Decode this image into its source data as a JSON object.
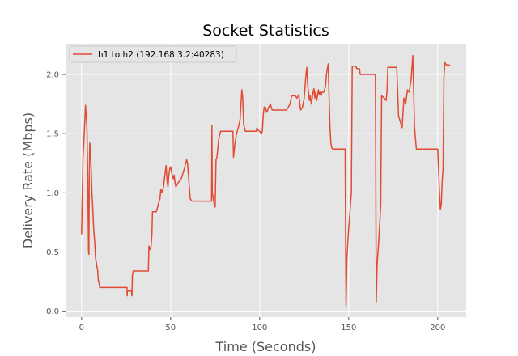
{
  "chart_data": {
    "type": "line",
    "title": "Socket Statistics",
    "xlabel": "Time (Seconds)",
    "ylabel": "Delivery Rate (Mbps)",
    "xlim": [
      -9,
      216
    ],
    "ylim": [
      -0.05,
      2.26
    ],
    "x_ticks": [
      0,
      50,
      100,
      150,
      200
    ],
    "y_ticks": [
      0.0,
      0.5,
      1.0,
      1.5,
      2.0
    ],
    "y_tick_format": 1,
    "grid": true,
    "legend": "top-left",
    "series": [
      {
        "name": "h1 to h2 (192.168.3.2:40283)",
        "color": "#e24a33",
        "points": [
          [
            0,
            0.65
          ],
          [
            0.4,
            1.0
          ],
          [
            0.8,
            1.3
          ],
          [
            1.2,
            1.4
          ],
          [
            1.8,
            1.6
          ],
          [
            2.2,
            1.74
          ],
          [
            2.6,
            1.65
          ],
          [
            3.0,
            1.55
          ],
          [
            3.4,
            1.2
          ],
          [
            3.7,
            0.8
          ],
          [
            3.9,
            0.5
          ],
          [
            4.1,
            0.48
          ],
          [
            4.3,
            1.1
          ],
          [
            4.6,
            1.42
          ],
          [
            5.0,
            1.35
          ],
          [
            5.4,
            1.2
          ],
          [
            5.8,
            1.0
          ],
          [
            6.2,
            0.9
          ],
          [
            6.6,
            0.75
          ],
          [
            7.0,
            0.65
          ],
          [
            7.4,
            0.58
          ],
          [
            7.8,
            0.45
          ],
          [
            8.2,
            0.42
          ],
          [
            8.6,
            0.38
          ],
          [
            9.0,
            0.35
          ],
          [
            9.4,
            0.26
          ],
          [
            9.8,
            0.24
          ],
          [
            10.2,
            0.2
          ],
          [
            25.5,
            0.2
          ],
          [
            25.6,
            0.13
          ],
          [
            25.7,
            0.17
          ],
          [
            27,
            0.17
          ],
          [
            28,
            0.17
          ],
          [
            28.3,
            0.13
          ],
          [
            28.5,
            0.3
          ],
          [
            29,
            0.34
          ],
          [
            37.5,
            0.34
          ],
          [
            37.8,
            0.55
          ],
          [
            38.3,
            0.52
          ],
          [
            39,
            0.55
          ],
          [
            39.5,
            0.65
          ],
          [
            39.8,
            0.84
          ],
          [
            42,
            0.84
          ],
          [
            43,
            0.9
          ],
          [
            44,
            0.95
          ],
          [
            44.5,
            1.03
          ],
          [
            45,
            1.0
          ],
          [
            46,
            1.05
          ],
          [
            47,
            1.18
          ],
          [
            47.5,
            1.23
          ],
          [
            48,
            1.1
          ],
          [
            48.5,
            1.05
          ],
          [
            49,
            1.15
          ],
          [
            49.5,
            1.2
          ],
          [
            50,
            1.22
          ],
          [
            50.5,
            1.18
          ],
          [
            51,
            1.14
          ],
          [
            51.5,
            1.12
          ],
          [
            52,
            1.15
          ],
          [
            52.5,
            1.08
          ],
          [
            53,
            1.05
          ],
          [
            54,
            1.08
          ],
          [
            55,
            1.1
          ],
          [
            56,
            1.12
          ],
          [
            57,
            1.17
          ],
          [
            58,
            1.22
          ],
          [
            59,
            1.28
          ],
          [
            59.5,
            1.25
          ],
          [
            60,
            1.15
          ],
          [
            61,
            0.95
          ],
          [
            62,
            0.93
          ],
          [
            73,
            0.93
          ],
          [
            73.2,
            1.57
          ],
          [
            73.4,
            1.0
          ],
          [
            74,
            0.95
          ],
          [
            74.5,
            0.9
          ],
          [
            75,
            0.88
          ],
          [
            75.5,
            1.28
          ],
          [
            76,
            1.3
          ],
          [
            77,
            1.45
          ],
          [
            78,
            1.52
          ],
          [
            85,
            1.52
          ],
          [
            85.3,
            1.3
          ],
          [
            86,
            1.4
          ],
          [
            87,
            1.5
          ],
          [
            88,
            1.55
          ],
          [
            89,
            1.62
          ],
          [
            89.5,
            1.75
          ],
          [
            90,
            1.87
          ],
          [
            90.5,
            1.8
          ],
          [
            91,
            1.58
          ],
          [
            92,
            1.52
          ],
          [
            98,
            1.52
          ],
          [
            98.5,
            1.55
          ],
          [
            99,
            1.53
          ],
          [
            100,
            1.52
          ],
          [
            101,
            1.5
          ],
          [
            101.5,
            1.52
          ],
          [
            102,
            1.65
          ],
          [
            102.5,
            1.72
          ],
          [
            103,
            1.73
          ],
          [
            104,
            1.68
          ],
          [
            105,
            1.72
          ],
          [
            106,
            1.75
          ],
          [
            107,
            1.7
          ],
          [
            108,
            1.7
          ],
          [
            115,
            1.7
          ],
          [
            116,
            1.72
          ],
          [
            117,
            1.75
          ],
          [
            118,
            1.82
          ],
          [
            120,
            1.82
          ],
          [
            121,
            1.8
          ],
          [
            122,
            1.83
          ],
          [
            123,
            1.7
          ],
          [
            124,
            1.72
          ],
          [
            125,
            1.8
          ],
          [
            126,
            2.0
          ],
          [
            126.5,
            2.06
          ],
          [
            127,
            1.9
          ],
          [
            128,
            1.78
          ],
          [
            128.5,
            1.82
          ],
          [
            129,
            1.75
          ],
          [
            130,
            1.85
          ],
          [
            130.5,
            1.88
          ],
          [
            131,
            1.8
          ],
          [
            131.5,
            1.85
          ],
          [
            132,
            1.78
          ],
          [
            132.5,
            1.82
          ],
          [
            133,
            1.87
          ],
          [
            133.5,
            1.83
          ],
          [
            134,
            1.85
          ],
          [
            134.5,
            1.82
          ],
          [
            135,
            1.85
          ],
          [
            136,
            1.85
          ],
          [
            137,
            1.9
          ],
          [
            137.5,
            2.0
          ],
          [
            138,
            2.05
          ],
          [
            138.5,
            2.09
          ],
          [
            139,
            1.8
          ],
          [
            139.5,
            1.55
          ],
          [
            140,
            1.42
          ],
          [
            140.5,
            1.38
          ],
          [
            141,
            1.37
          ],
          [
            148,
            1.37
          ],
          [
            148.5,
            0.04
          ],
          [
            149,
            0.45
          ],
          [
            150,
            0.7
          ],
          [
            151,
            0.9
          ],
          [
            151.5,
            1.0
          ],
          [
            152,
            2.07
          ],
          [
            154,
            2.07
          ],
          [
            154.5,
            2.05
          ],
          [
            156,
            2.05
          ],
          [
            156.5,
            2.0
          ],
          [
            165,
            2.0
          ],
          [
            165.5,
            0.08
          ],
          [
            166,
            0.4
          ],
          [
            167,
            0.62
          ],
          [
            168,
            0.9
          ],
          [
            168.5,
            1.82
          ],
          [
            170,
            1.8
          ],
          [
            171,
            1.78
          ],
          [
            171.5,
            1.85
          ],
          [
            172,
            2.06
          ],
          [
            177,
            2.06
          ],
          [
            178,
            1.65
          ],
          [
            179,
            1.6
          ],
          [
            180,
            1.55
          ],
          [
            181,
            1.8
          ],
          [
            182,
            1.75
          ],
          [
            183,
            1.87
          ],
          [
            184,
            1.85
          ],
          [
            185,
            1.95
          ],
          [
            185.5,
            2.05
          ],
          [
            186,
            2.16
          ],
          [
            186.5,
            1.85
          ],
          [
            187,
            1.55
          ],
          [
            188,
            1.37
          ],
          [
            200,
            1.37
          ],
          [
            201,
            1.0
          ],
          [
            201.5,
            0.86
          ],
          [
            202,
            0.9
          ],
          [
            202.5,
            1.1
          ],
          [
            203,
            1.2
          ],
          [
            203.5,
            1.98
          ],
          [
            204,
            2.1
          ],
          [
            205,
            2.08
          ],
          [
            207,
            2.08
          ]
        ]
      }
    ]
  }
}
